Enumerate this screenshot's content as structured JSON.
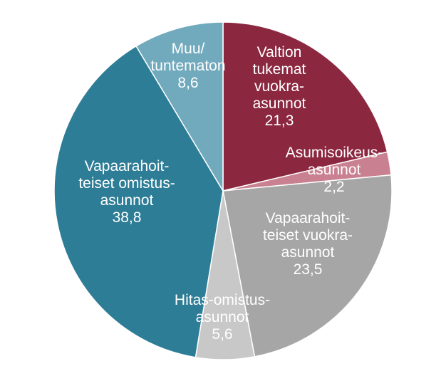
{
  "chart_data": {
    "type": "pie",
    "title": "",
    "slices": [
      {
        "lines": [
          "Valtion",
          "tukemat",
          "vuokra-",
          "asunnot"
        ],
        "value": 21.3,
        "value_label": "21,3",
        "color": "#8b2840",
        "text_color": "#ffffff"
      },
      {
        "lines": [
          "Asumisoikeus-",
          "asunnot"
        ],
        "value": 2.2,
        "value_label": "2,2",
        "color": "#c98090",
        "text_color": "#ffffff"
      },
      {
        "lines": [
          "Vapaarahoit-",
          "teiset vuokra-",
          "asunnot"
        ],
        "value": 23.5,
        "value_label": "23,5",
        "color": "#a6a6a6",
        "text_color": "#ffffff"
      },
      {
        "lines": [
          "Hitas-omistus-",
          "asunnot"
        ],
        "value": 5.6,
        "value_label": "5,6",
        "color": "#c8c8c8",
        "text_color": "#ffffff"
      },
      {
        "lines": [
          "Vapaarahoit-",
          "teiset omistus-",
          "asunnot"
        ],
        "value": 38.8,
        "value_label": "38,8",
        "color": "#2e7d96",
        "text_color": "#ffffff"
      },
      {
        "lines": [
          "Muu/",
          "tuntematon"
        ],
        "value": 8.6,
        "value_label": "8,6",
        "color": "#71a9bd",
        "text_color": "#ffffff"
      }
    ]
  }
}
